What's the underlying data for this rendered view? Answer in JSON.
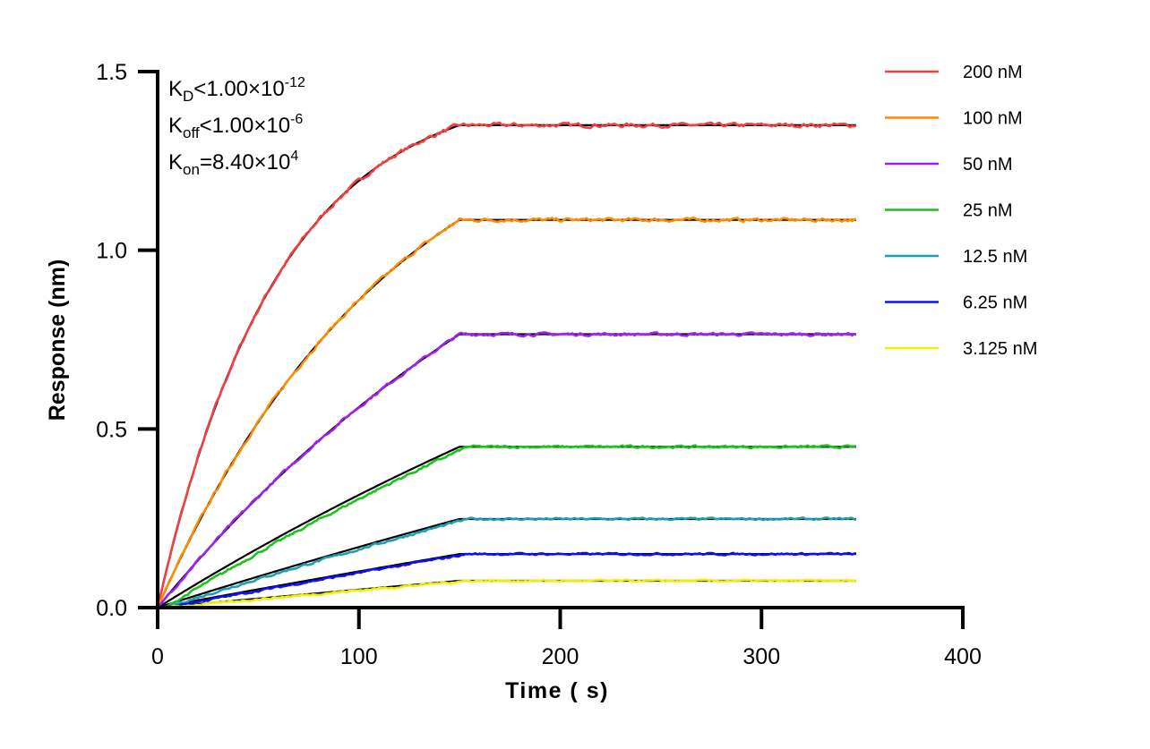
{
  "chart_data": {
    "type": "line",
    "xlabel": "Time ( s)",
    "ylabel": "Response (nm)",
    "xlim": [
      0,
      400
    ],
    "ylim": [
      0,
      1.5
    ],
    "xticks": [
      "0",
      "100",
      "200",
      "300",
      "400"
    ],
    "yticks": [
      "0.0",
      "0.5",
      "1.0",
      "1.5"
    ],
    "xtick_values": [
      0,
      100,
      200,
      300,
      400
    ],
    "ytick_values": [
      0,
      0.5,
      1.0,
      1.5
    ],
    "grid": false,
    "legend_position": "right",
    "annotations": {
      "kd": {
        "main": "K",
        "sub": "D",
        "rel": "<1.00×10",
        "sup": "-12"
      },
      "koff": {
        "main": "K",
        "sub": "off",
        "rel": "<1.00×10",
        "sup": "-6"
      },
      "kon": {
        "main": "K",
        "sub": "on",
        "rel": "=8.40×10",
        "sup": "4"
      }
    },
    "kon": 84000,
    "association_end_s": 150,
    "end_s": 347,
    "fit_color": "#000000",
    "series": [
      {
        "name": "200 nM",
        "concentration_nM": 200,
        "plateau": 1.35,
        "color": "#f04040"
      },
      {
        "name": "100 nM",
        "concentration_nM": 100,
        "plateau": 1.085,
        "color": "#ff8c00"
      },
      {
        "name": "50 nM",
        "concentration_nM": 50,
        "plateau": 0.765,
        "color": "#a020f0"
      },
      {
        "name": "25 nM",
        "concentration_nM": 25,
        "plateau": 0.45,
        "color": "#18c418"
      },
      {
        "name": "12.5 nM",
        "concentration_nM": 12.5,
        "plateau": 0.248,
        "color": "#1aa0b0"
      },
      {
        "name": "6.25 nM",
        "concentration_nM": 6.25,
        "plateau": 0.15,
        "color": "#1010f0"
      },
      {
        "name": "3.125 nM",
        "concentration_nM": 3.125,
        "plateau": 0.075,
        "color": "#f0f000"
      }
    ]
  }
}
